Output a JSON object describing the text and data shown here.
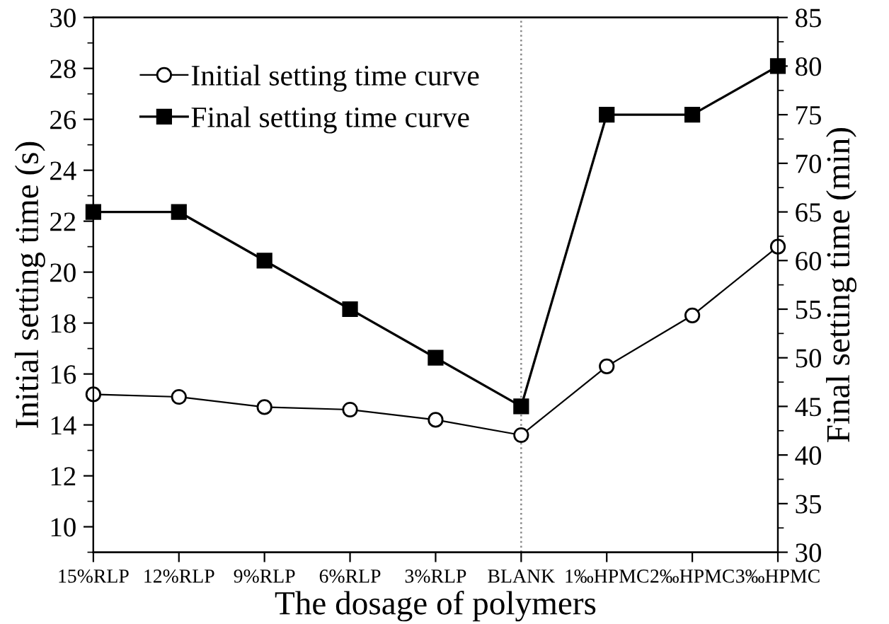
{
  "chart_data": {
    "type": "line",
    "xlabel": "The dosage of polymers",
    "ylabel": "Initial setting time (s)",
    "y2label": "Final setting time (min)",
    "categories": [
      "15%RLP",
      "12%RLP",
      "9%RLP",
      "6%RLP",
      "3%RLP",
      "BLANK",
      "1‰HPMC",
      "2‰HPMC",
      "3‰HPMC"
    ],
    "series": [
      {
        "name": "Initial setting time curve",
        "color": "#000000",
        "marker": "circle",
        "axis": "y",
        "values": [
          15.2,
          15.1,
          14.7,
          14.6,
          14.2,
          13.6,
          16.3,
          18.3,
          21.0
        ]
      },
      {
        "name": "Final setting time curve",
        "color": "#000000",
        "marker": "square",
        "axis": "y2",
        "values": [
          65,
          65,
          60,
          55,
          50,
          45,
          75,
          75,
          80
        ]
      }
    ],
    "ylim": [
      9,
      30
    ],
    "yticks": [
      10,
      12,
      14,
      16,
      18,
      20,
      22,
      24,
      26,
      28,
      30
    ],
    "y2lim": [
      30,
      85
    ],
    "y2ticks": [
      30,
      35,
      40,
      45,
      50,
      55,
      60,
      65,
      70,
      75,
      80,
      85
    ],
    "ref_lines": [
      {
        "axis": "x",
        "value": "BLANK",
        "color": "#888888",
        "line_style": "dotted"
      }
    ],
    "legend": "top left",
    "grid": false
  }
}
